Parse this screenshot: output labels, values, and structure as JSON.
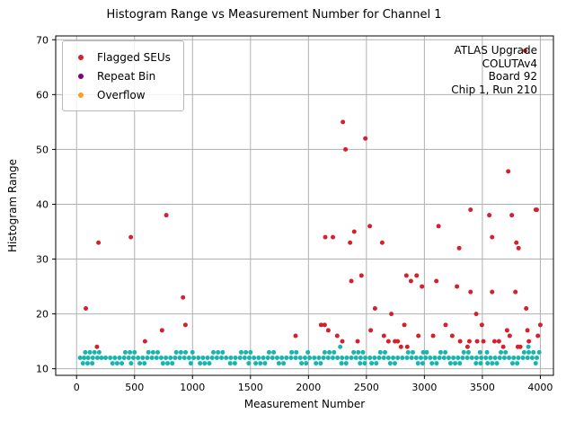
{
  "title": "Histogram Range vs Measurement Number for Channel 1",
  "annotation": {
    "line1": "ATLAS Upgrade",
    "line2": "COLUTAv4",
    "line3": "Board 92",
    "line4": "Chip 1, Run 210"
  },
  "legend": {
    "items": [
      {
        "label": "Flagged SEUs",
        "color": "#d3212d"
      },
      {
        "label": "Repeat Bin",
        "color": "#800080"
      },
      {
        "label": "Overflow",
        "color": "#ffa019"
      }
    ]
  },
  "chart_data": {
    "type": "scatter",
    "title": "Histogram Range vs Measurement Number for Channel 1",
    "xlabel": "Measurement Number",
    "ylabel": "Histogram Range",
    "xlim": [
      -180,
      4113
    ],
    "ylim": [
      8.8,
      70.7
    ],
    "xticks": [
      0,
      500,
      1000,
      1500,
      2000,
      2500,
      3000,
      3500,
      4000
    ],
    "yticks": [
      10,
      20,
      30,
      40,
      50,
      60,
      70
    ],
    "grid": true,
    "grid_color": "#b0b0b0",
    "legend_position": "upper left",
    "marker_radius": 2.5,
    "series": [
      {
        "name": "Histogram Range",
        "color": "#17b5ad",
        "in_legend": false,
        "points": [
          [
            30,
            12
          ],
          [
            65,
            12
          ],
          [
            100,
            12
          ],
          [
            140,
            12
          ],
          [
            180,
            12
          ],
          [
            215,
            12
          ],
          [
            250,
            12
          ],
          [
            290,
            12
          ],
          [
            330,
            12
          ],
          [
            370,
            12
          ],
          [
            410,
            12
          ],
          [
            450,
            12
          ],
          [
            490,
            12
          ],
          [
            55,
            11
          ],
          [
            95,
            11
          ],
          [
            135,
            11
          ],
          [
            310,
            11
          ],
          [
            350,
            11
          ],
          [
            390,
            11
          ],
          [
            470,
            11
          ],
          [
            75,
            13
          ],
          [
            115,
            13
          ],
          [
            155,
            13
          ],
          [
            195,
            13
          ],
          [
            420,
            13
          ],
          [
            460,
            13
          ],
          [
            500,
            13
          ],
          [
            530,
            12
          ],
          [
            570,
            12
          ],
          [
            610,
            12
          ],
          [
            650,
            12
          ],
          [
            690,
            12
          ],
          [
            730,
            12
          ],
          [
            770,
            12
          ],
          [
            810,
            12
          ],
          [
            850,
            12
          ],
          [
            890,
            12
          ],
          [
            930,
            12
          ],
          [
            970,
            12
          ],
          [
            545,
            11
          ],
          [
            585,
            11
          ],
          [
            745,
            11
          ],
          [
            785,
            11
          ],
          [
            825,
            11
          ],
          [
            985,
            11
          ],
          [
            620,
            13
          ],
          [
            660,
            13
          ],
          [
            700,
            13
          ],
          [
            860,
            13
          ],
          [
            900,
            13
          ],
          [
            940,
            13
          ],
          [
            1000,
            13
          ],
          [
            1010,
            12
          ],
          [
            1050,
            12
          ],
          [
            1090,
            12
          ],
          [
            1130,
            12
          ],
          [
            1170,
            12
          ],
          [
            1210,
            12
          ],
          [
            1250,
            12
          ],
          [
            1290,
            12
          ],
          [
            1330,
            12
          ],
          [
            1370,
            12
          ],
          [
            1410,
            12
          ],
          [
            1450,
            12
          ],
          [
            1490,
            12
          ],
          [
            1065,
            11
          ],
          [
            1105,
            11
          ],
          [
            1145,
            11
          ],
          [
            1325,
            11
          ],
          [
            1365,
            11
          ],
          [
            1485,
            11
          ],
          [
            1180,
            13
          ],
          [
            1220,
            13
          ],
          [
            1260,
            13
          ],
          [
            1420,
            13
          ],
          [
            1460,
            13
          ],
          [
            1500,
            13
          ],
          [
            1530,
            12
          ],
          [
            1570,
            12
          ],
          [
            1610,
            12
          ],
          [
            1650,
            12
          ],
          [
            1690,
            12
          ],
          [
            1730,
            12
          ],
          [
            1770,
            12
          ],
          [
            1810,
            12
          ],
          [
            1850,
            12
          ],
          [
            1890,
            12
          ],
          [
            1930,
            12
          ],
          [
            1970,
            12
          ],
          [
            1545,
            11
          ],
          [
            1585,
            11
          ],
          [
            1625,
            11
          ],
          [
            1745,
            11
          ],
          [
            1785,
            11
          ],
          [
            1940,
            11
          ],
          [
            1980,
            11
          ],
          [
            1660,
            13
          ],
          [
            1700,
            13
          ],
          [
            1855,
            13
          ],
          [
            1895,
            13
          ],
          [
            1995,
            13
          ],
          [
            2010,
            12
          ],
          [
            2050,
            12
          ],
          [
            2090,
            12
          ],
          [
            2130,
            12
          ],
          [
            2170,
            12
          ],
          [
            2210,
            12
          ],
          [
            2250,
            12
          ],
          [
            2290,
            12
          ],
          [
            2330,
            12
          ],
          [
            2370,
            12
          ],
          [
            2410,
            12
          ],
          [
            2450,
            12
          ],
          [
            2490,
            12
          ],
          [
            2065,
            11
          ],
          [
            2105,
            11
          ],
          [
            2285,
            11
          ],
          [
            2325,
            11
          ],
          [
            2445,
            11
          ],
          [
            2485,
            11
          ],
          [
            2140,
            13
          ],
          [
            2180,
            13
          ],
          [
            2220,
            13
          ],
          [
            2390,
            13
          ],
          [
            2430,
            13
          ],
          [
            2470,
            13
          ],
          [
            2274,
            14
          ],
          [
            2530,
            12
          ],
          [
            2570,
            12
          ],
          [
            2610,
            12
          ],
          [
            2650,
            12
          ],
          [
            2690,
            12
          ],
          [
            2730,
            12
          ],
          [
            2770,
            12
          ],
          [
            2810,
            12
          ],
          [
            2850,
            12
          ],
          [
            2890,
            12
          ],
          [
            2930,
            12
          ],
          [
            2970,
            12
          ],
          [
            2545,
            11
          ],
          [
            2585,
            11
          ],
          [
            2705,
            11
          ],
          [
            2745,
            11
          ],
          [
            2945,
            11
          ],
          [
            2985,
            11
          ],
          [
            2620,
            13
          ],
          [
            2660,
            13
          ],
          [
            2860,
            13
          ],
          [
            2900,
            13
          ],
          [
            2990,
            13
          ],
          [
            3010,
            12
          ],
          [
            3050,
            12
          ],
          [
            3090,
            12
          ],
          [
            3130,
            12
          ],
          [
            3170,
            12
          ],
          [
            3210,
            12
          ],
          [
            3250,
            12
          ],
          [
            3290,
            12
          ],
          [
            3330,
            12
          ],
          [
            3370,
            12
          ],
          [
            3410,
            12
          ],
          [
            3450,
            12
          ],
          [
            3490,
            12
          ],
          [
            3065,
            11
          ],
          [
            3105,
            11
          ],
          [
            3225,
            11
          ],
          [
            3265,
            11
          ],
          [
            3305,
            11
          ],
          [
            3445,
            11
          ],
          [
            3485,
            11
          ],
          [
            3020,
            13
          ],
          [
            3140,
            13
          ],
          [
            3180,
            13
          ],
          [
            3340,
            13
          ],
          [
            3380,
            13
          ],
          [
            3480,
            13
          ],
          [
            3530,
            12
          ],
          [
            3570,
            12
          ],
          [
            3610,
            12
          ],
          [
            3650,
            12
          ],
          [
            3690,
            12
          ],
          [
            3730,
            12
          ],
          [
            3770,
            12
          ],
          [
            3810,
            12
          ],
          [
            3850,
            12
          ],
          [
            3890,
            12
          ],
          [
            3930,
            12
          ],
          [
            3970,
            12
          ],
          [
            3545,
            11
          ],
          [
            3585,
            11
          ],
          [
            3625,
            11
          ],
          [
            3760,
            11
          ],
          [
            3800,
            11
          ],
          [
            3960,
            11
          ],
          [
            3540,
            13
          ],
          [
            3660,
            13
          ],
          [
            3700,
            13
          ],
          [
            3860,
            13
          ],
          [
            3900,
            13
          ],
          [
            3940,
            13
          ],
          [
            3990,
            13
          ],
          [
            3897,
            14
          ]
        ]
      },
      {
        "name": "Flagged SEUs",
        "color": "#d3212d",
        "in_legend": true,
        "points": [
          [
            80,
            21
          ],
          [
            176,
            14
          ],
          [
            189,
            33
          ],
          [
            468,
            34
          ],
          [
            590,
            15
          ],
          [
            737,
            17
          ],
          [
            774,
            38
          ],
          [
            918,
            23
          ],
          [
            939,
            18
          ],
          [
            1889,
            16
          ],
          [
            2109,
            18
          ],
          [
            2140,
            18
          ],
          [
            2145,
            34
          ],
          [
            2171,
            17
          ],
          [
            2211,
            34
          ],
          [
            2248,
            16
          ],
          [
            2292,
            15
          ],
          [
            2297,
            55
          ],
          [
            2320,
            50
          ],
          [
            2359,
            33
          ],
          [
            2370,
            26
          ],
          [
            2395,
            35
          ],
          [
            2424,
            15
          ],
          [
            2457,
            27
          ],
          [
            2491,
            52
          ],
          [
            2529,
            36
          ],
          [
            2537,
            17
          ],
          [
            2574,
            21
          ],
          [
            2636,
            33
          ],
          [
            2651,
            16
          ],
          [
            2690,
            15
          ],
          [
            2715,
            20
          ],
          [
            2746,
            15
          ],
          [
            2770,
            15
          ],
          [
            2798,
            14
          ],
          [
            2827,
            18
          ],
          [
            2845,
            27
          ],
          [
            2852,
            14
          ],
          [
            2884,
            26
          ],
          [
            2933,
            27
          ],
          [
            2948,
            16
          ],
          [
            2979,
            25
          ],
          [
            3075,
            16
          ],
          [
            3103,
            26
          ],
          [
            3122,
            36
          ],
          [
            3183,
            18
          ],
          [
            3240,
            16
          ],
          [
            3281,
            25
          ],
          [
            3300,
            32
          ],
          [
            3308,
            15
          ],
          [
            3372,
            14
          ],
          [
            3388,
            15
          ],
          [
            3398,
            39
          ],
          [
            3398,
            24
          ],
          [
            3447,
            20
          ],
          [
            3455,
            15
          ],
          [
            3496,
            18
          ],
          [
            3509,
            15
          ],
          [
            3560,
            38
          ],
          [
            3584,
            34
          ],
          [
            3584,
            24
          ],
          [
            3605,
            15
          ],
          [
            3643,
            15
          ],
          [
            3680,
            14
          ],
          [
            3713,
            17
          ],
          [
            3723,
            46
          ],
          [
            3736,
            16
          ],
          [
            3754,
            38
          ],
          [
            3785,
            24
          ],
          [
            3793,
            33
          ],
          [
            3806,
            14
          ],
          [
            3812,
            32
          ],
          [
            3827,
            14
          ],
          [
            3869,
            68
          ],
          [
            3878,
            21
          ],
          [
            3889,
            17
          ],
          [
            3901,
            15
          ],
          [
            3961,
            39
          ],
          [
            3969,
            39
          ],
          [
            3979,
            16
          ],
          [
            4000,
            18
          ]
        ]
      },
      {
        "name": "Repeat Bin",
        "color": "#800080",
        "in_legend": true,
        "points": []
      },
      {
        "name": "Overflow",
        "color": "#ffa019",
        "in_legend": true,
        "points": []
      }
    ]
  }
}
